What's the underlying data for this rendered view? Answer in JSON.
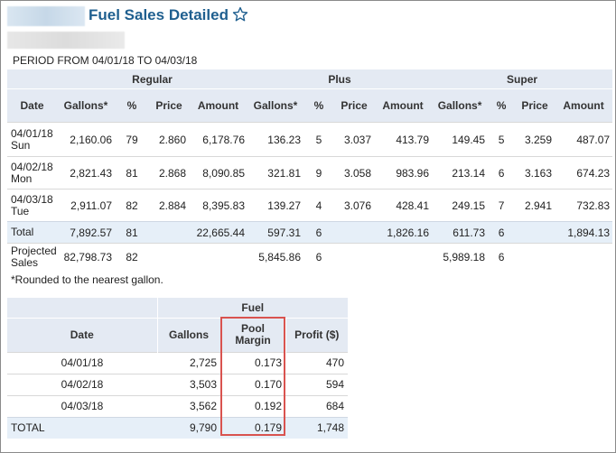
{
  "header": {
    "title": "Fuel Sales Detailed",
    "favorite_icon": "star-outline-icon",
    "period": "PERIOD FROM 04/01/18 TO 04/03/18"
  },
  "main_table": {
    "groups": [
      "Regular",
      "Plus",
      "Super"
    ],
    "columns": [
      "Date",
      "Gallons*",
      "%",
      "Price",
      "Amount",
      "Gallons*",
      "%",
      "Price",
      "Amount",
      "Gallons*",
      "%",
      "Price",
      "Amount"
    ],
    "rows": [
      {
        "date": "04/01/18",
        "day": "Sun",
        "cells": [
          "2,160.06",
          "79",
          "2.860",
          "6,178.76",
          "136.23",
          "5",
          "3.037",
          "413.79",
          "149.45",
          "5",
          "3.259",
          "487.07"
        ]
      },
      {
        "date": "04/02/18",
        "day": "Mon",
        "cells": [
          "2,821.43",
          "81",
          "2.868",
          "8,090.85",
          "321.81",
          "9",
          "3.058",
          "983.96",
          "213.14",
          "6",
          "3.163",
          "674.23"
        ]
      },
      {
        "date": "04/03/18",
        "day": "Tue",
        "cells": [
          "2,911.07",
          "82",
          "2.884",
          "8,395.83",
          "139.27",
          "4",
          "3.076",
          "428.41",
          "249.15",
          "7",
          "2.941",
          "732.83"
        ]
      }
    ],
    "total": {
      "label": "Total",
      "cells": [
        "7,892.57",
        "81",
        "",
        "22,665.44",
        "597.31",
        "6",
        "",
        "1,826.16",
        "611.73",
        "6",
        "",
        "1,894.13"
      ]
    },
    "projected": {
      "label1": "Projected",
      "label2": "Sales",
      "cells": [
        "82,798.73",
        "82",
        "",
        "",
        "5,845.86",
        "6",
        "",
        "",
        "5,989.18",
        "6",
        "",
        ""
      ]
    }
  },
  "footnote": "*Rounded to the nearest gallon.",
  "fuel_table": {
    "group": "Fuel",
    "columns": {
      "date": "Date",
      "gallons": "Gallons",
      "pool1": "Pool",
      "pool2": "Margin",
      "profit": "Profit ($)"
    },
    "rows": [
      {
        "date": "04/01/18",
        "gallons": "2,725",
        "pool_margin": "0.173",
        "profit": "470"
      },
      {
        "date": "04/02/18",
        "gallons": "3,503",
        "pool_margin": "0.170",
        "profit": "594"
      },
      {
        "date": "04/03/18",
        "gallons": "3,562",
        "pool_margin": "0.192",
        "profit": "684"
      }
    ],
    "total": {
      "label": "TOTAL",
      "gallons": "9,790",
      "pool_margin": "0.179",
      "profit": "1,748"
    }
  },
  "colors": {
    "title": "#1f5f8f",
    "header_bg": "#e4eaf3",
    "total_bg": "#e6eff8",
    "highlight": "#d9534f"
  }
}
